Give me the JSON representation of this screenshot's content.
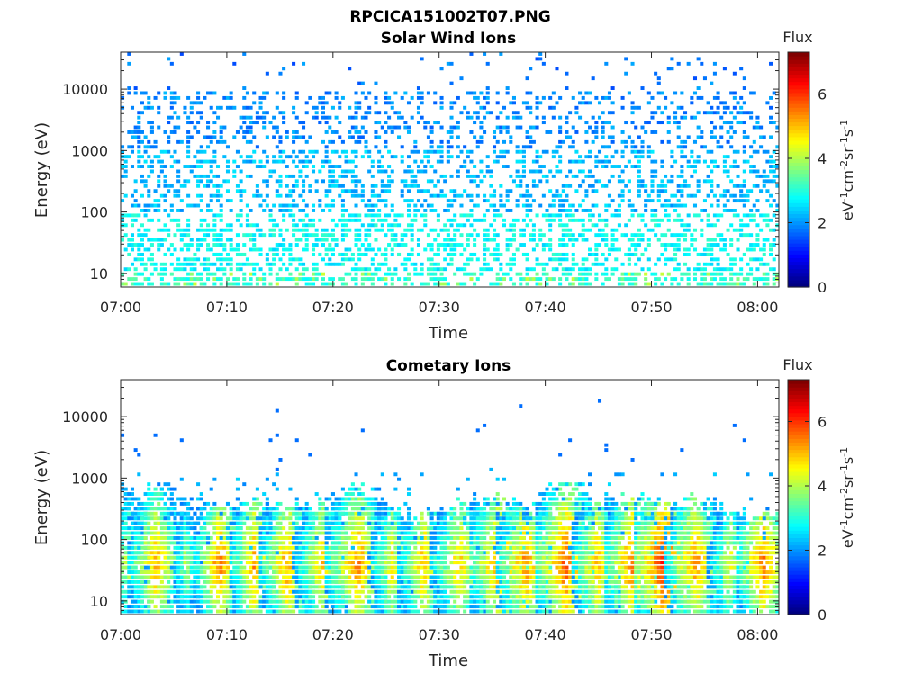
{
  "figure_title": "RPCICA151002T07.PNG",
  "chart_data": [
    {
      "type": "heatmap",
      "title": "Solar Wind Ions",
      "xlabel": "Time",
      "ylabel": "Energy (eV)",
      "x_ticks": [
        "07:00",
        "07:10",
        "07:20",
        "07:30",
        "07:40",
        "07:50",
        "08:00"
      ],
      "x_range": [
        "07:00",
        "08:02"
      ],
      "y_scale": "log",
      "y_ticks": [
        10,
        100,
        1000,
        10000
      ],
      "y_tick_labels": [
        "10",
        "100",
        "1000",
        "10000"
      ],
      "y_range": [
        6,
        40000
      ],
      "colorbar": {
        "label": "Flux",
        "unit_label": "eV-1cm-2sr-1s-1",
        "ticks": [
          0,
          2,
          4,
          6
        ],
        "tick_labels": [
          "0",
          "2",
          "4",
          "6"
        ],
        "range": [
          0,
          7.3
        ],
        "colormap": "jet"
      },
      "description_data": {
        "low_energy_band": {
          "energy_range": [
            6,
            100
          ],
          "typical_log_flux": [
            2.8,
            3.6
          ]
        },
        "mid_energy_band": {
          "energy_range": [
            100,
            1000
          ],
          "typical_log_flux": [
            2.0,
            2.8
          ]
        },
        "high_energy_band": {
          "energy_range": [
            1000,
            35000
          ],
          "typical_log_flux": [
            1.6,
            2.2
          ]
        },
        "sparse_max_points": [
          {
            "time": "07:03",
            "energy": 30000,
            "log_flux": 1.7
          },
          {
            "time": "07:13",
            "energy": 20000,
            "log_flux": 1.7
          },
          {
            "time": "07:44",
            "energy": 35000,
            "log_flux": 1.7
          },
          {
            "time": "07:58",
            "energy": 22000,
            "log_flux": 1.7
          }
        ]
      }
    },
    {
      "type": "heatmap",
      "title": "Cometary Ions",
      "xlabel": "Time",
      "ylabel": "Energy (eV)",
      "x_ticks": [
        "07:00",
        "07:10",
        "07:20",
        "07:30",
        "07:40",
        "07:50",
        "08:00"
      ],
      "x_range": [
        "07:00",
        "08:02"
      ],
      "y_scale": "log",
      "y_ticks": [
        10,
        100,
        1000,
        10000
      ],
      "y_tick_labels": [
        "10",
        "100",
        "1000",
        "10000"
      ],
      "y_range": [
        6,
        40000
      ],
      "colorbar": {
        "label": "Flux",
        "unit_label": "eV-1cm-2sr-1s-1",
        "ticks": [
          0,
          2,
          4,
          6
        ],
        "tick_labels": [
          "0",
          "2",
          "4",
          "6"
        ],
        "range": [
          0,
          7.3
        ],
        "colormap": "jet"
      },
      "bursts": [
        {
          "time": 0.5,
          "width": 1.4,
          "peak": 4.2,
          "top_energy": 700
        },
        {
          "time": 3.2,
          "width": 1.6,
          "peak": 5.2,
          "top_energy": 700
        },
        {
          "time": 6.0,
          "width": 1.0,
          "peak": 4.0,
          "top_energy": 450
        },
        {
          "time": 9.2,
          "width": 1.3,
          "peak": 5.6,
          "top_energy": 350
        },
        {
          "time": 12.4,
          "width": 1.2,
          "peak": 5.4,
          "top_energy": 400
        },
        {
          "time": 15.6,
          "width": 1.5,
          "peak": 5.4,
          "top_energy": 350
        },
        {
          "time": 18.8,
          "width": 1.5,
          "peak": 5.0,
          "top_energy": 350
        },
        {
          "time": 22.2,
          "width": 1.7,
          "peak": 5.5,
          "top_energy": 600
        },
        {
          "time": 25.4,
          "width": 1.2,
          "peak": 4.8,
          "top_energy": 300
        },
        {
          "time": 28.4,
          "width": 1.3,
          "peak": 5.2,
          "top_energy": 250
        },
        {
          "time": 31.8,
          "width": 1.6,
          "peak": 5.0,
          "top_energy": 350
        },
        {
          "time": 35.6,
          "width": 1.7,
          "peak": 5.6,
          "top_energy": 400
        },
        {
          "time": 38.0,
          "width": 1.5,
          "peak": 5.5,
          "top_energy": 300
        },
        {
          "time": 41.8,
          "width": 1.7,
          "peak": 5.8,
          "top_energy": 700
        },
        {
          "time": 44.8,
          "width": 1.4,
          "peak": 5.2,
          "top_energy": 400
        },
        {
          "time": 48.0,
          "width": 1.5,
          "peak": 5.6,
          "top_energy": 450
        },
        {
          "time": 51.0,
          "width": 1.6,
          "peak": 6.2,
          "top_energy": 350
        },
        {
          "time": 54.0,
          "width": 1.6,
          "peak": 5.4,
          "top_energy": 400
        },
        {
          "time": 57.2,
          "width": 1.2,
          "peak": 4.6,
          "top_energy": 250
        },
        {
          "time": 60.4,
          "width": 1.5,
          "peak": 5.6,
          "top_energy": 250
        }
      ],
      "sparse_high_points": [
        {
          "time": 14.5,
          "energy": 12000
        },
        {
          "time": 14.6,
          "energy": 5000
        },
        {
          "time": 22.5,
          "energy": 5500
        },
        {
          "time": 34.0,
          "energy": 7500
        },
        {
          "time": 37.5,
          "energy": 15000
        },
        {
          "time": 44.8,
          "energy": 18000
        },
        {
          "time": 57.8,
          "energy": 6500
        }
      ]
    }
  ]
}
